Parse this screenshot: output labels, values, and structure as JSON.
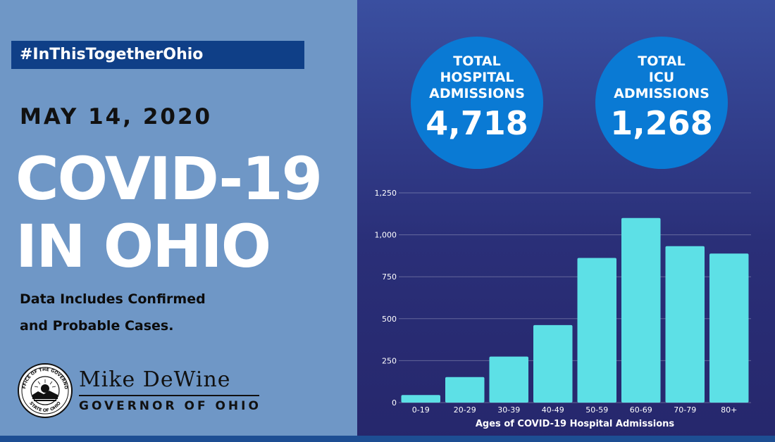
{
  "hashtag": "#InThisTogetherOhio",
  "date": "MAY 14, 2020",
  "title_line1": "COVID-19",
  "title_line2": "IN OHIO",
  "subtitle_line1": "Data Includes Confirmed",
  "subtitle_line2": "and Probable Cases.",
  "governor": {
    "name": "Mike DeWine",
    "title": "GOVERNOR OF OHIO",
    "seal_text_top": "OFFICE OF THE GOVERNOR",
    "seal_text_bottom": "STATE OF OHIO"
  },
  "stats": [
    {
      "label_lines": [
        "TOTAL",
        "HOSPITAL",
        "ADMISSIONS"
      ],
      "value": "4,718"
    },
    {
      "label_lines": [
        "TOTAL",
        "ICU",
        "ADMISSIONS"
      ],
      "value": "1,268"
    }
  ],
  "colors": {
    "bar": "#5de0e6",
    "circle": "#0a7ad4",
    "left_panel": "#6f97c6",
    "hashtag_bg": "#0f3f87"
  },
  "chart_data": {
    "type": "bar",
    "categories": [
      "0-19",
      "20-29",
      "30-39",
      "40-49",
      "50-59",
      "60-69",
      "70-79",
      "80+"
    ],
    "values": [
      45,
      152,
      274,
      462,
      862,
      1100,
      932,
      888
    ],
    "yticks": [
      0,
      250,
      500,
      750,
      1000,
      1250
    ],
    "ytick_labels": [
      "0",
      "250",
      "500",
      "750",
      "1,000",
      "1,250"
    ],
    "ylim": [
      0,
      1250
    ],
    "xlabel": "Ages of COVID-19 Hospital Admissions",
    "ylabel": "",
    "title": "",
    "grid": true,
    "legend": "none"
  }
}
